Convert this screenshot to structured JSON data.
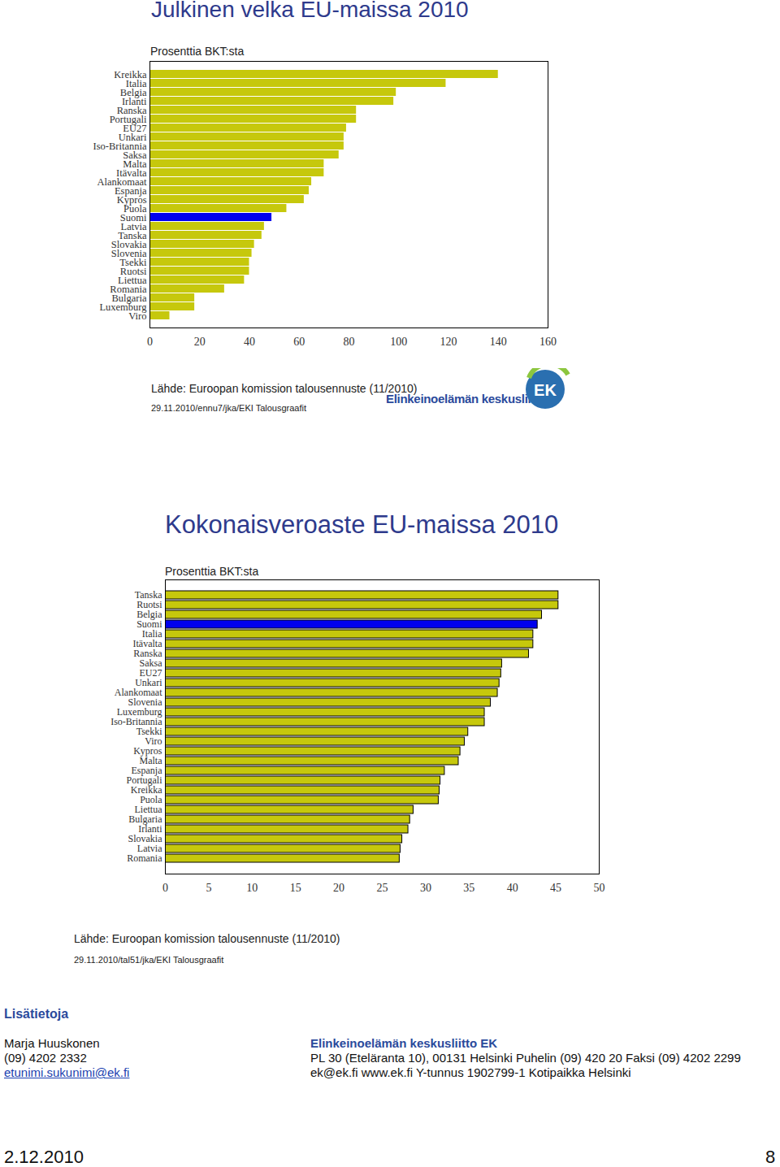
{
  "chart_data": [
    {
      "type": "bar",
      "orientation": "horizontal",
      "title": "Julkinen velka EU-maissa 2010",
      "subtitle": "Prosenttia BKT:sta",
      "annotations": [
        "Lähde: Euroopan komission talousennuste (11/2010)",
        "29.11.2010/ennu7/jka/EKI Talousgraafit"
      ],
      "categories": [
        "Kreikka",
        "Italia",
        "Belgia",
        "Irlanti",
        "Ranska",
        "Portugali",
        "EU27",
        "Unkari",
        "Iso-Britannia",
        "Saksa",
        "Malta",
        "Itävalta",
        "Alankomaat",
        "Espanja",
        "Kypros",
        "Puola",
        "Suomi",
        "Latvia",
        "Tanska",
        "Slovakia",
        "Slovenia",
        "Tsekki",
        "Ruotsi",
        "Liettua",
        "Romania",
        "Bulgaria",
        "Luxemburg",
        "Viro"
      ],
      "values": [
        140,
        119,
        99,
        98,
        83,
        83,
        79,
        78,
        78,
        76,
        70,
        70,
        65,
        64,
        62,
        55,
        49,
        46,
        45,
        42,
        41,
        40,
        40,
        38,
        30,
        18,
        18,
        8
      ],
      "colors": [
        "#c6c80c",
        "#c6c80c",
        "#c6c80c",
        "#c6c80c",
        "#c6c80c",
        "#c6c80c",
        "#c6c80c",
        "#c6c80c",
        "#c6c80c",
        "#c6c80c",
        "#c6c80c",
        "#c6c80c",
        "#c6c80c",
        "#c6c80c",
        "#c6c80c",
        "#c6c80c",
        "#0000ee",
        "#c6c80c",
        "#c6c80c",
        "#c6c80c",
        "#c6c80c",
        "#c6c80c",
        "#c6c80c",
        "#c6c80c",
        "#c6c80c",
        "#c6c80c",
        "#c6c80c",
        "#c6c80c"
      ],
      "xlim": [
        0,
        160
      ],
      "xticks": [
        0,
        20,
        40,
        60,
        80,
        100,
        120,
        140,
        160
      ],
      "grid": false
    },
    {
      "type": "bar",
      "orientation": "horizontal",
      "title": "Kokonaisveroaste EU-maissa 2010",
      "subtitle": "Prosenttia BKT:sta",
      "annotations": [
        "Lähde: Euroopan komission talousennuste (11/2010)",
        "29.11.2010/tal51/jka/EKI Talousgraafit"
      ],
      "categories": [
        "Tanska",
        "Ruotsi",
        "Belgia",
        "Suomi",
        "Italia",
        "Itävalta",
        "Ranska",
        "Saksa",
        "EU27",
        "Unkari",
        "Alankomaat",
        "Slovenia",
        "Luxemburg",
        "Iso-Britannia",
        "Tsekki",
        "Viro",
        "Kypros",
        "Malta",
        "Espanja",
        "Portugali",
        "Kreikka",
        "Puola",
        "Liettua",
        "Bulgaria",
        "Irlanti",
        "Slovakia",
        "Latvia",
        "Romania"
      ],
      "values": [
        45.3,
        45.3,
        43.4,
        42.9,
        42.4,
        42.4,
        41.9,
        38.8,
        38.7,
        38.5,
        38.3,
        37.5,
        36.8,
        36.8,
        34.9,
        34.5,
        34.0,
        33.8,
        32.2,
        31.7,
        31.6,
        31.5,
        28.6,
        28.2,
        28.0,
        27.3,
        27.1,
        27.0
      ],
      "colors": [
        "#c6c80c",
        "#c6c80c",
        "#c6c80c",
        "#0000ee",
        "#c6c80c",
        "#c6c80c",
        "#c6c80c",
        "#c6c80c",
        "#c6c80c",
        "#c6c80c",
        "#c6c80c",
        "#c6c80c",
        "#c6c80c",
        "#c6c80c",
        "#c6c80c",
        "#c6c80c",
        "#c6c80c",
        "#c6c80c",
        "#c6c80c",
        "#c6c80c",
        "#c6c80c",
        "#c6c80c",
        "#c6c80c",
        "#c6c80c",
        "#c6c80c",
        "#c6c80c",
        "#c6c80c",
        "#c6c80c"
      ],
      "xlim": [
        0,
        50
      ],
      "xticks": [
        0,
        5,
        10,
        15,
        20,
        25,
        30,
        35,
        40,
        45,
        50
      ],
      "grid": false
    }
  ],
  "page": {
    "logo": {
      "name": "Elinkeinoelämän keskusliitto",
      "mark": "EK"
    },
    "contact": {
      "heading": "Lisätietoja",
      "person": [
        "Marja Huuskonen",
        "(09) 4202 2332",
        "etunimi.sukunimi@ek.fi"
      ],
      "organisation": [
        "Elinkeinoelämän keskusliitto EK",
        "PL 30 (Eteläranta 10), 00131 Helsinki Puhelin (09) 420 20 Faksi (09) 4202 2299",
        "ek@ek.fi www.ek.fi Y-tunnus 1902799-1 Kotipaikka Helsinki"
      ]
    },
    "footer": {
      "date": "2.12.2010",
      "page_number": "8"
    }
  }
}
